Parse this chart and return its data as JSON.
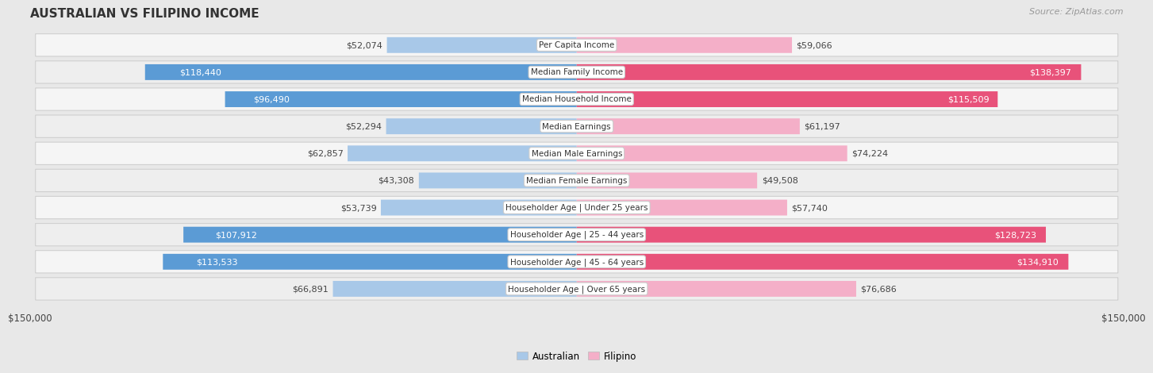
{
  "title": "AUSTRALIAN VS FILIPINO INCOME",
  "source": "Source: ZipAtlas.com",
  "categories": [
    "Per Capita Income",
    "Median Family Income",
    "Median Household Income",
    "Median Earnings",
    "Median Male Earnings",
    "Median Female Earnings",
    "Householder Age | Under 25 years",
    "Householder Age | 25 - 44 years",
    "Householder Age | 45 - 64 years",
    "Householder Age | Over 65 years"
  ],
  "australian_values": [
    52074,
    118440,
    96490,
    52294,
    62857,
    43308,
    53739,
    107912,
    113533,
    66891
  ],
  "filipino_values": [
    59066,
    138397,
    115509,
    61197,
    74224,
    49508,
    57740,
    128723,
    134910,
    76686
  ],
  "australian_labels": [
    "$52,074",
    "$118,440",
    "$96,490",
    "$52,294",
    "$62,857",
    "$43,308",
    "$53,739",
    "$107,912",
    "$113,533",
    "$66,891"
  ],
  "filipino_labels": [
    "$59,066",
    "$138,397",
    "$115,509",
    "$61,197",
    "$74,224",
    "$49,508",
    "$57,740",
    "$128,723",
    "$134,910",
    "$76,686"
  ],
  "max_value": 150000,
  "australian_color_light": "#a8c8e8",
  "australian_color_dark": "#5b9bd5",
  "filipino_color_light": "#f4afc8",
  "filipino_color_dark": "#e8527a",
  "bg_color": "#e8e8e8",
  "row_bg_light": "#f5f5f5",
  "row_bg_dark": "#e8e8e8",
  "label_threshold": 90000,
  "legend_australian": "Australian",
  "legend_filipino": "Filipino"
}
